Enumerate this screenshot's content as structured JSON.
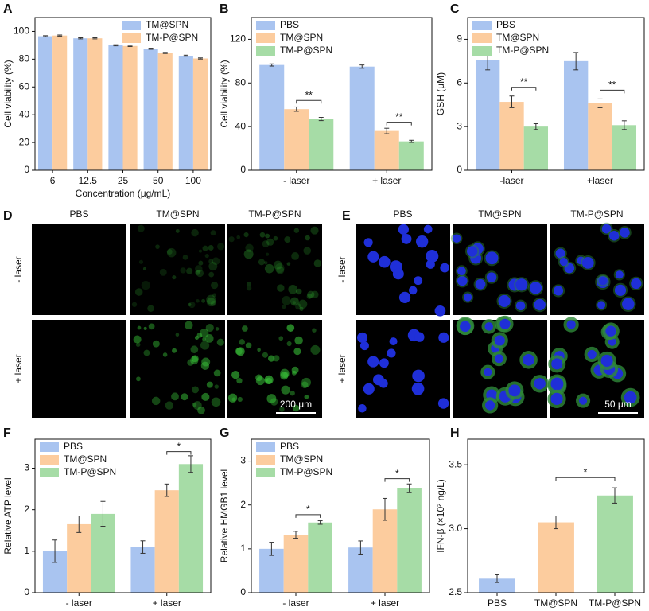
{
  "chart_data": [
    {
      "type": "bar",
      "panel": "A",
      "ylabel": "Cell viability (%)",
      "xlabel": "Concentration (μg/mL)",
      "categories": [
        "6",
        "12.5",
        "25",
        "50",
        "100"
      ],
      "series": [
        {
          "name": "TM@SPN",
          "color": "#a9c4f0",
          "values": [
            96.5,
            95,
            90,
            87.5,
            82.5
          ],
          "errors": [
            0.4,
            0.4,
            0.4,
            0.4,
            0.4
          ]
        },
        {
          "name": "TM-P@SPN",
          "color": "#fccc9e",
          "values": [
            97,
            95,
            89.5,
            84.5,
            80.5
          ],
          "errors": [
            0.4,
            0.4,
            0.4,
            0.4,
            0.4
          ]
        }
      ],
      "ylim": [
        0,
        110
      ],
      "yticks": [
        0,
        20,
        40,
        60,
        80,
        100
      ],
      "legend": "upper right"
    },
    {
      "type": "bar",
      "panel": "B",
      "ylabel": "Cell viability (%)",
      "categories": [
        "- laser",
        "+ laser"
      ],
      "series": [
        {
          "name": "PBS",
          "color": "#a9c4f0",
          "values": [
            96.5,
            95
          ],
          "errors": [
            1,
            1.5
          ]
        },
        {
          "name": "TM@SPN",
          "color": "#fccc9e",
          "values": [
            56,
            36
          ],
          "errors": [
            2,
            2.5
          ]
        },
        {
          "name": "TM-P@SPN",
          "color": "#a6dca6",
          "values": [
            47,
            26.5
          ],
          "errors": [
            1.5,
            1
          ]
        }
      ],
      "ylim": [
        0,
        140
      ],
      "yticks": [
        0,
        40,
        80,
        120
      ],
      "legend": "upper left",
      "annotations": [
        "**",
        "**"
      ]
    },
    {
      "type": "bar",
      "panel": "C",
      "ylabel": "GSH (μM)",
      "categories": [
        "-laser",
        "+laser"
      ],
      "series": [
        {
          "name": "PBS",
          "color": "#a9c4f0",
          "values": [
            7.6,
            7.5
          ],
          "errors": [
            0.7,
            0.6
          ]
        },
        {
          "name": "TM@SPN",
          "color": "#fccc9e",
          "values": [
            4.7,
            4.6
          ],
          "errors": [
            0.4,
            0.3
          ]
        },
        {
          "name": "TM-P@SPN",
          "color": "#a6dca6",
          "values": [
            3.0,
            3.1
          ],
          "errors": [
            0.2,
            0.3
          ]
        }
      ],
      "ylim": [
        0,
        10.5
      ],
      "yticks": [
        0,
        3,
        6,
        9
      ],
      "legend": "upper left",
      "annotations": [
        "**",
        "**"
      ]
    },
    {
      "type": "bar",
      "panel": "F",
      "ylabel": "Relative ATP level",
      "categories": [
        "- laser",
        "+ laser"
      ],
      "series": [
        {
          "name": "PBS",
          "color": "#a9c4f0",
          "values": [
            1.0,
            1.1
          ],
          "errors": [
            0.27,
            0.15
          ]
        },
        {
          "name": "TM@SPN",
          "color": "#fccc9e",
          "values": [
            1.65,
            2.47
          ],
          "errors": [
            0.2,
            0.15
          ]
        },
        {
          "name": "TM-P@SPN",
          "color": "#a6dca6",
          "values": [
            1.9,
            3.1
          ],
          "errors": [
            0.3,
            0.2
          ]
        }
      ],
      "ylim": [
        0,
        3.7
      ],
      "yticks": [
        0,
        1,
        2,
        3
      ],
      "legend": "upper left",
      "annotations": [
        "*"
      ]
    },
    {
      "type": "bar",
      "panel": "G",
      "ylabel": "Relative HMGB1 level",
      "categories": [
        "- laser",
        "+ laser"
      ],
      "series": [
        {
          "name": "PBS",
          "color": "#a9c4f0",
          "values": [
            1.0,
            1.03
          ],
          "errors": [
            0.15,
            0.15
          ]
        },
        {
          "name": "TM@SPN",
          "color": "#fccc9e",
          "values": [
            1.32,
            1.9
          ],
          "errors": [
            0.08,
            0.25
          ]
        },
        {
          "name": "TM-P@SPN",
          "color": "#a6dca6",
          "values": [
            1.6,
            2.38
          ],
          "errors": [
            0.04,
            0.1
          ]
        }
      ],
      "ylim": [
        0,
        3.5
      ],
      "yticks": [
        0,
        1,
        2,
        3
      ],
      "legend": "upper left",
      "annotations": [
        "*",
        "*"
      ]
    },
    {
      "type": "bar",
      "panel": "H",
      "ylabel": "IFN-β (×10² ng/L)",
      "categories": [
        "PBS",
        "TM@SPN",
        "TM-P@SPN"
      ],
      "values": [
        2.61,
        3.05,
        3.26
      ],
      "errors": [
        0.03,
        0.05,
        0.06
      ],
      "colors": [
        "#a9c4f0",
        "#fccc9e",
        "#a6dca6"
      ],
      "ylim": [
        2.5,
        3.7
      ],
      "yticks": [
        2.5,
        {
          "value": 3,
          "label": "3.0"
        },
        3.5
      ],
      "annotations": [
        "*"
      ]
    }
  ],
  "micrographs": [
    {
      "panel": "D",
      "columns": [
        "PBS",
        "TM@SPN",
        "TM-P@SPN"
      ],
      "rows": [
        "- laser",
        "+ laser"
      ],
      "scale_bar": "200 μm"
    },
    {
      "panel": "E",
      "columns": [
        "PBS",
        "TM@SPN",
        "TM-P@SPN"
      ],
      "rows": [
        "- laser",
        "+ laser"
      ],
      "scale_bar": "50 μm"
    }
  ]
}
